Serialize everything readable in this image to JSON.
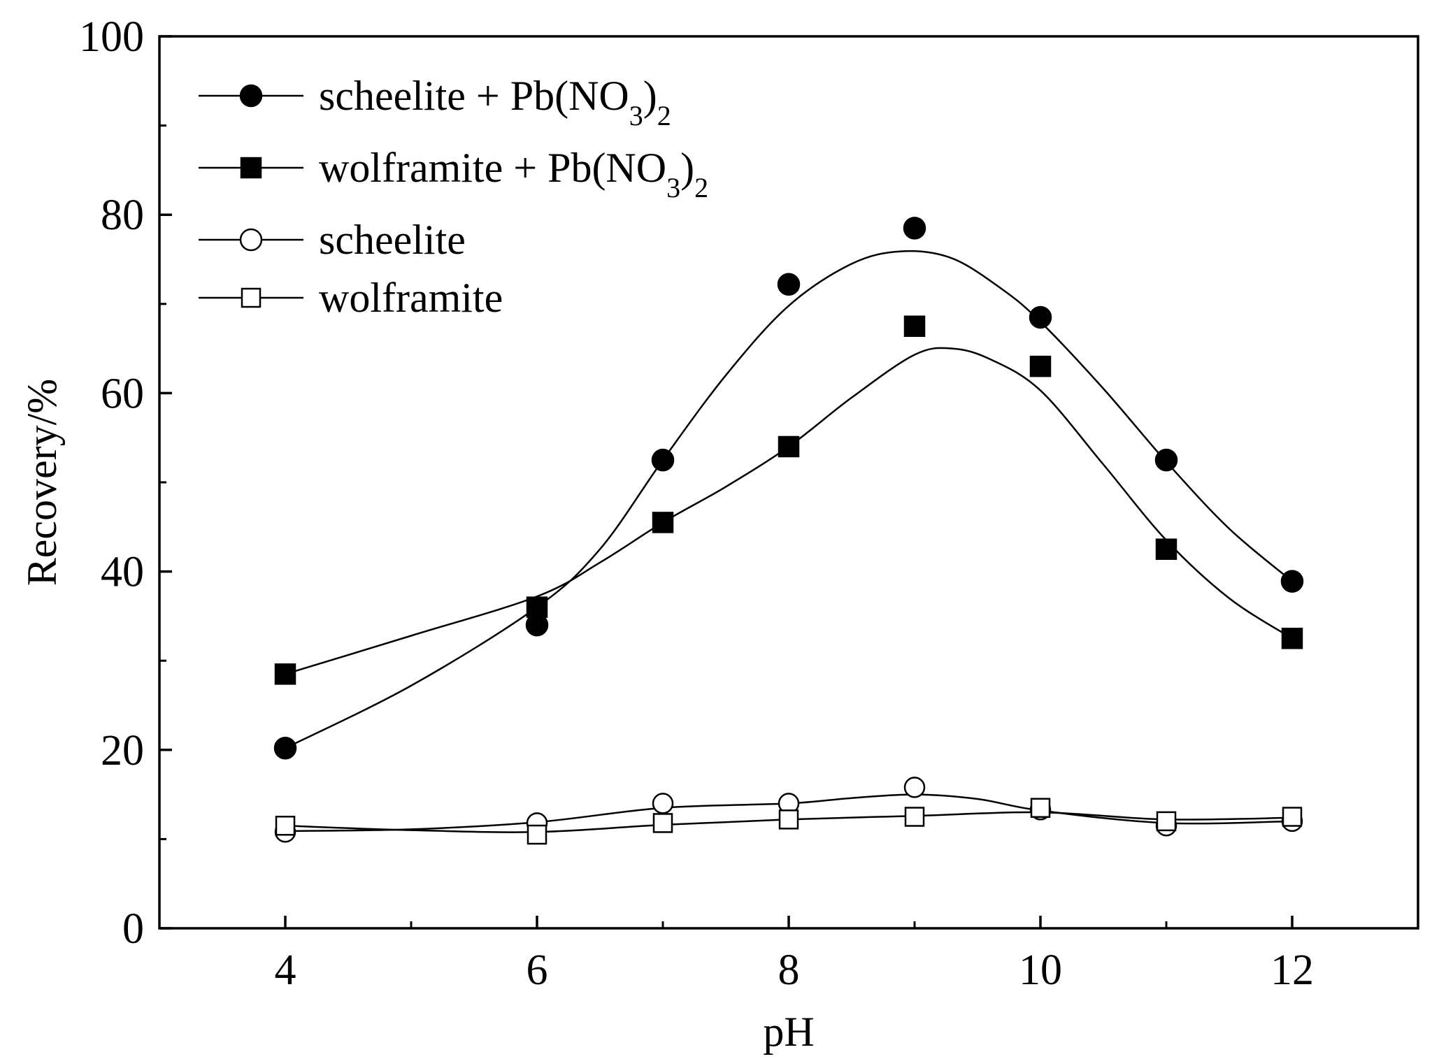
{
  "chart_data": {
    "type": "scatter",
    "title": "",
    "xlabel": "pH",
    "ylabel": "Recovery/%",
    "xlim": [
      3,
      13
    ],
    "ylim": [
      0,
      100
    ],
    "xticks": [
      4,
      6,
      8,
      10,
      12
    ],
    "xticks_minor": [
      5,
      7,
      9,
      11
    ],
    "yticks": [
      0,
      20,
      40,
      60,
      80,
      100
    ],
    "yticks_minor": [
      10,
      30,
      50,
      70,
      90
    ],
    "grid": false,
    "legend_position": "top-left",
    "series": [
      {
        "name": "scheelite + Pb(NO3)2",
        "legend_main": "scheelite + Pb(NO",
        "legend_sub1": "3",
        "legend_close": ")",
        "legend_sub2": "2",
        "marker": "filled-circle",
        "x": [
          4,
          6,
          7,
          8,
          9,
          10,
          11,
          12
        ],
        "y": [
          20.2,
          34.0,
          52.5,
          72.2,
          78.5,
          68.5,
          52.5,
          38.9
        ],
        "fit_x": [
          4,
          5,
          6,
          6.5,
          7,
          7.5,
          8,
          8.5,
          8.9,
          9.3,
          9.7,
          10,
          10.5,
          11,
          11.5,
          12
        ],
        "fit_y": [
          20.2,
          27.2,
          36.0,
          42.5,
          52.5,
          62.0,
          69.8,
          74.5,
          75.9,
          75.1,
          71.6,
          68.0,
          60.5,
          52.3,
          44.8,
          38.9
        ]
      },
      {
        "name": "wolframite + Pb(NO3)2",
        "legend_main": "wolframite + Pb(NO",
        "legend_sub1": "3",
        "legend_close": ")",
        "legend_sub2": "2",
        "marker": "filled-square",
        "x": [
          4,
          6,
          7,
          8,
          9,
          10,
          11,
          12
        ],
        "y": [
          28.5,
          36.0,
          45.5,
          54.0,
          67.5,
          63.0,
          42.5,
          32.5
        ],
        "fit_x": [
          4,
          5,
          6,
          6.5,
          7,
          7.5,
          8,
          8.5,
          9,
          9.3,
          9.6,
          10,
          10.5,
          11,
          11.5,
          12
        ],
        "fit_y": [
          28.5,
          32.8,
          37.2,
          41.0,
          45.5,
          49.5,
          54.0,
          59.5,
          64.3,
          65.0,
          63.8,
          60.3,
          52.0,
          43.5,
          37.0,
          32.5
        ]
      },
      {
        "name": "scheelite",
        "legend_main": "scheelite",
        "marker": "open-circle",
        "x": [
          4,
          6,
          7,
          8,
          9,
          10,
          11,
          12
        ],
        "y": [
          10.8,
          11.8,
          14.0,
          14.0,
          15.8,
          13.3,
          11.5,
          12.0
        ],
        "fit_x": [
          4,
          5,
          6,
          7,
          8,
          8.5,
          9,
          9.5,
          10,
          11,
          12
        ],
        "fit_y": [
          10.9,
          11.1,
          11.9,
          13.5,
          14.0,
          14.6,
          15.0,
          14.5,
          13.2,
          11.8,
          12.0
        ]
      },
      {
        "name": "wolframite",
        "legend_main": "wolframite",
        "marker": "open-square",
        "x": [
          4,
          6,
          7,
          8,
          9,
          10,
          11,
          12
        ],
        "y": [
          11.5,
          10.5,
          11.8,
          12.2,
          12.5,
          13.5,
          12.0,
          12.5
        ],
        "fit_x": [
          4,
          5,
          6,
          7,
          8,
          9,
          10,
          11,
          12
        ],
        "fit_y": [
          11.5,
          11.0,
          10.8,
          11.6,
          12.2,
          12.6,
          13.0,
          12.2,
          12.4
        ]
      }
    ]
  }
}
